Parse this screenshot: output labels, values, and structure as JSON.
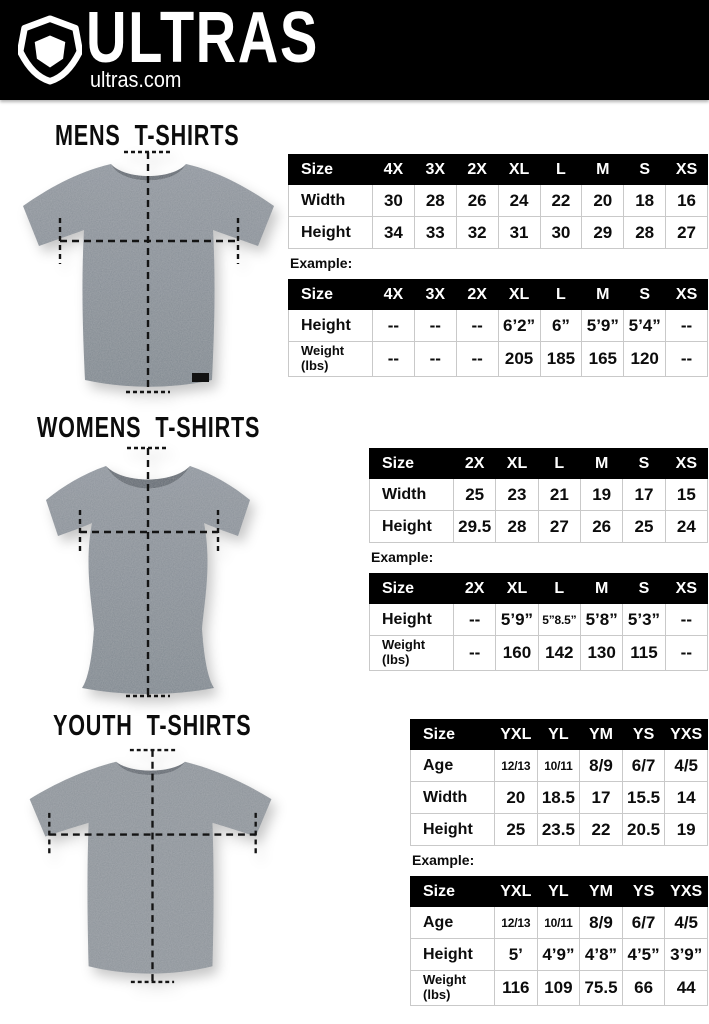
{
  "header": {
    "brand": "ULTRAS",
    "url": "ultras.com",
    "logo_icon": "ultras-shield-icon",
    "bg_color": "#000000",
    "text_color": "#ffffff"
  },
  "colors": {
    "shirt_gray": "#858d95",
    "shirt_collar": "#5e666f",
    "table_border": "#c9c9c9",
    "table_header_bg": "#000000",
    "table_header_text": "#ffffff"
  },
  "mens": {
    "title": "MENS T-SHIRTS",
    "example_label": "Example:",
    "size_table": {
      "header": [
        "Size",
        "4X",
        "3X",
        "2X",
        "XL",
        "L",
        "M",
        "S",
        "XS"
      ],
      "rows": [
        {
          "label": "Width",
          "values": [
            "30",
            "28",
            "26",
            "24",
            "22",
            "20",
            "18",
            "16"
          ]
        },
        {
          "label": "Height",
          "values": [
            "34",
            "33",
            "32",
            "31",
            "30",
            "29",
            "28",
            "27"
          ]
        }
      ]
    },
    "example_table": {
      "header": [
        "Size",
        "4X",
        "3X",
        "2X",
        "XL",
        "L",
        "M",
        "S",
        "XS"
      ],
      "rows": [
        {
          "label": "Height",
          "values": [
            "--",
            "--",
            "--",
            "6’2”",
            "6”",
            "5’9”",
            "5’4”",
            "--"
          ]
        },
        {
          "label": "Weight (lbs)",
          "values": [
            "--",
            "--",
            "--",
            "205",
            "185",
            "165",
            "120",
            "--"
          ]
        }
      ]
    }
  },
  "womens": {
    "title": "WOMENS T-SHIRTS",
    "example_label": "Example:",
    "size_table": {
      "header": [
        "Size",
        "2X",
        "XL",
        "L",
        "M",
        "S",
        "XS"
      ],
      "rows": [
        {
          "label": "Width",
          "values": [
            "25",
            "23",
            "21",
            "19",
            "17",
            "15"
          ]
        },
        {
          "label": "Height",
          "values": [
            "29.5",
            "28",
            "27",
            "26",
            "25",
            "24"
          ]
        }
      ]
    },
    "example_table": {
      "header": [
        "Size",
        "2X",
        "XL",
        "L",
        "M",
        "S",
        "XS"
      ],
      "rows": [
        {
          "label": "Height",
          "values": [
            "--",
            "5’9”",
            "5”8.5”",
            "5’8”",
            "5’3”",
            "--"
          ]
        },
        {
          "label": "Weight (lbs)",
          "values": [
            "--",
            "160",
            "142",
            "130",
            "115",
            "--"
          ]
        }
      ]
    }
  },
  "youth": {
    "title": "YOUTH T-SHIRTS",
    "example_label": "Example:",
    "size_table": {
      "header": [
        "Size",
        "YXL",
        "YL",
        "YM",
        "YS",
        "YXS"
      ],
      "rows": [
        {
          "label": "Age",
          "values": [
            "12/13",
            "10/11",
            "8/9",
            "6/7",
            "4/5"
          ]
        },
        {
          "label": "Width",
          "values": [
            "20",
            "18.5",
            "17",
            "15.5",
            "14"
          ]
        },
        {
          "label": "Height",
          "values": [
            "25",
            "23.5",
            "22",
            "20.5",
            "19"
          ]
        }
      ]
    },
    "example_table": {
      "header": [
        "Size",
        "YXL",
        "YL",
        "YM",
        "YS",
        "YXS"
      ],
      "rows": [
        {
          "label": "Age",
          "values": [
            "12/13",
            "10/11",
            "8/9",
            "6/7",
            "4/5"
          ]
        },
        {
          "label": "Height",
          "values": [
            "5’",
            "4’9”",
            "4’8”",
            "4’5”",
            "3’9”"
          ]
        },
        {
          "label": "Weight (lbs)",
          "values": [
            "116",
            "109",
            "75.5",
            "66",
            "44"
          ]
        }
      ]
    }
  }
}
